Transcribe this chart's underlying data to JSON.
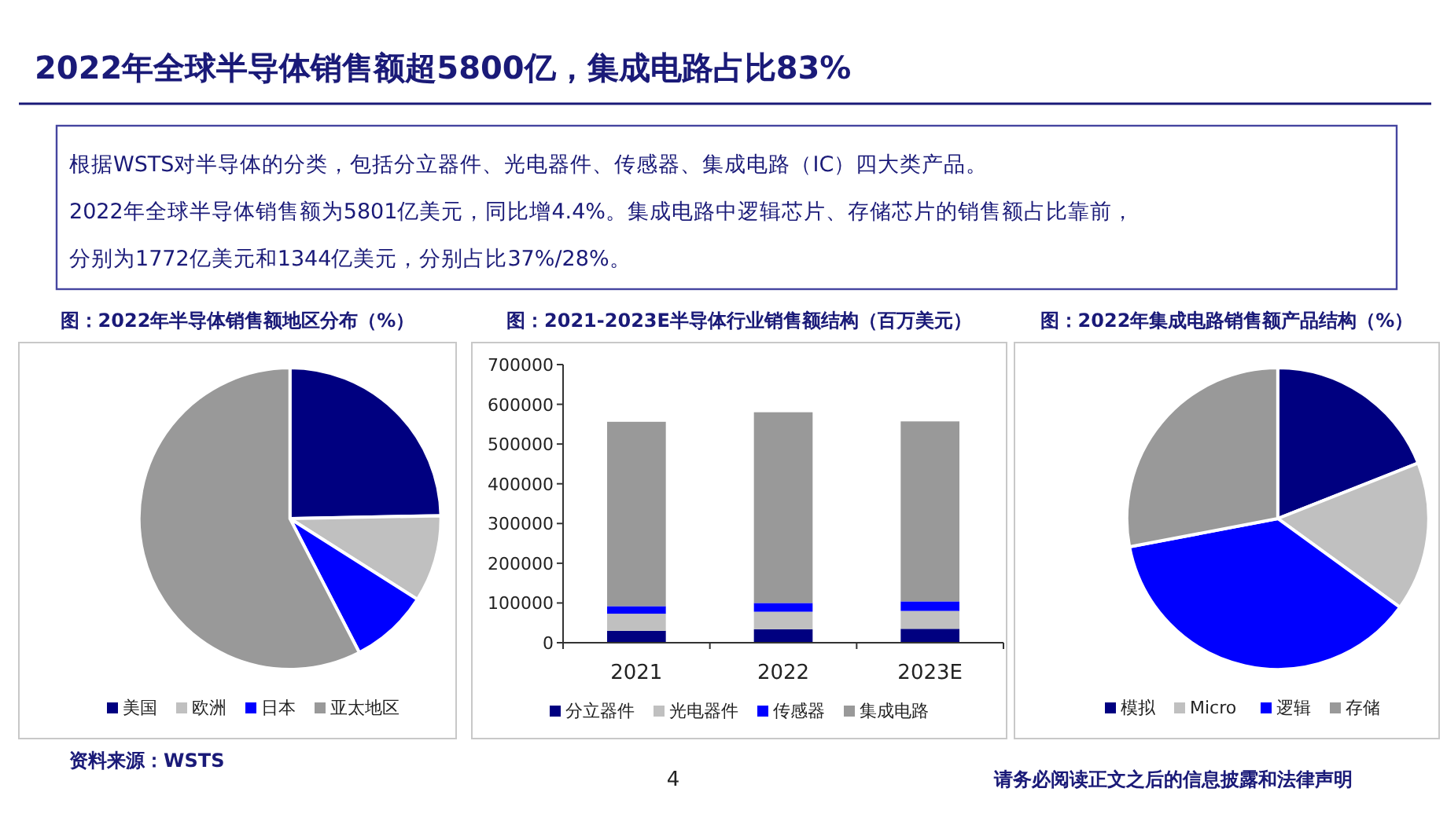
{
  "chart_data": [
    {
      "type": "pie",
      "title": "图：2022年半导体销售额地区分布（%）",
      "categories": [
        "美国",
        "欧洲",
        "日本",
        "亚太地区"
      ],
      "values": [
        24.7,
        9.3,
        8.4,
        57.6
      ],
      "colors": [
        "#000080",
        "#c0c0c0",
        "#0000ff",
        "#999999"
      ],
      "legend": "bottom",
      "annotations": [
        "2022年全球半导体销售额超5800亿，集成电路占比83%",
        "根据WSTS对半导体的分类，包括分立器件、光电器件、传感器、集成电路（IC）四大类产品。",
        "2022年全球半导体销售额为5801亿美元，同比增4.4%。集成电路中逻辑芯片、存储芯片的销售额占比靠前，",
        "分别为1772亿美元和1344亿美元，分别占比37%/28%。",
        "资料来源：WSTS",
        "4",
        "请务必阅读正文之后的信息披露和法律声明"
      ]
    },
    {
      "type": "bar",
      "title": "图：2021-2023E半导体行业销售额结构（百万美元）",
      "categories": [
        "2021",
        "2022",
        "2023E"
      ],
      "stacked": true,
      "legend": "bottom",
      "ylim": [
        0,
        700000
      ],
      "yticks": [
        0,
        100000,
        200000,
        300000,
        400000,
        500000,
        600000,
        700000
      ],
      "series": [
        {
          "name": "分立器件",
          "color": "#000080",
          "values": [
            30000,
            34000,
            35000
          ]
        },
        {
          "name": "光电器件",
          "color": "#c0c0c0",
          "values": [
            43000,
            44000,
            45000
          ]
        },
        {
          "name": "传感器",
          "color": "#0000ff",
          "values": [
            19000,
            22000,
            24000
          ]
        },
        {
          "name": "集成电路",
          "color": "#999999",
          "values": [
            464000,
            480000,
            453000
          ]
        }
      ]
    },
    {
      "type": "pie",
      "title": "图：2022年集成电路销售额产品结构（%）",
      "categories": [
        "模拟",
        "Micro",
        "逻辑",
        "存储"
      ],
      "values": [
        19,
        16,
        37,
        28
      ],
      "colors": [
        "#000080",
        "#c0c0c0",
        "#0000ff",
        "#999999"
      ],
      "legend": "bottom"
    }
  ]
}
